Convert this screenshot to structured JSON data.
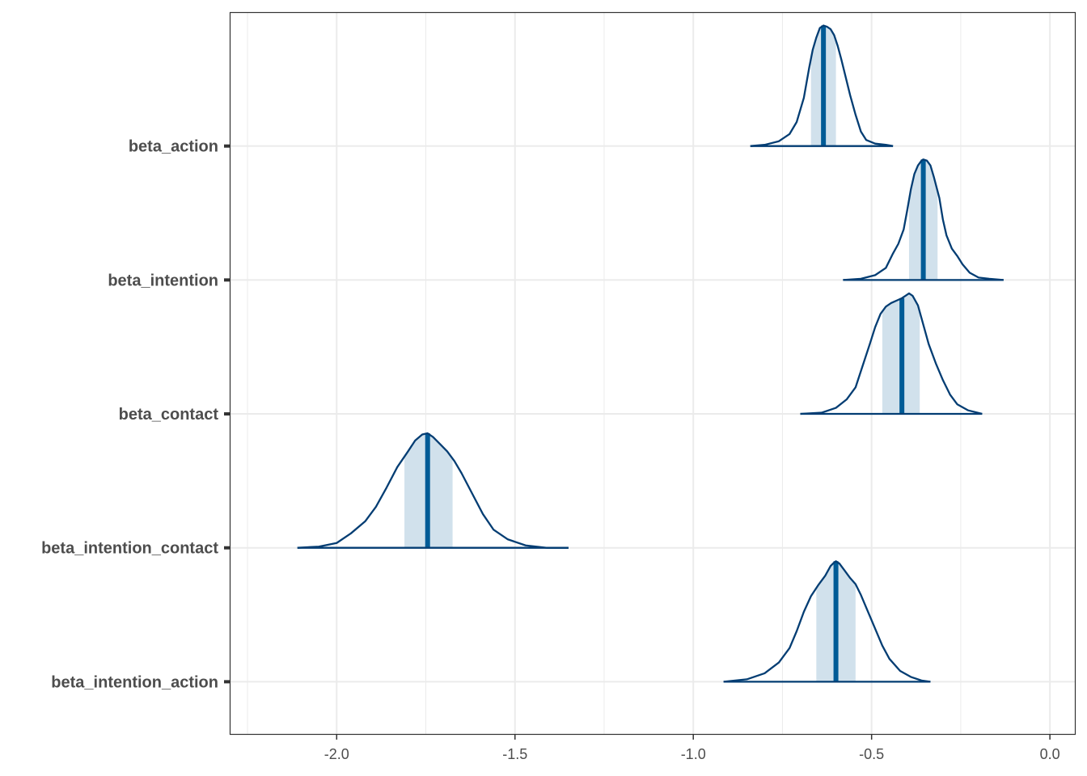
{
  "chart_data": {
    "type": "density",
    "xlim": [
      -2.3,
      0.07
    ],
    "x_ticks": [
      -2.0,
      -1.5,
      -1.0,
      -0.5,
      0.0
    ],
    "x_tick_labels": [
      "-2.0",
      "-1.5",
      "-1.0",
      "-0.5",
      "0.0"
    ],
    "grid": true,
    "colors": {
      "outline": "#033d73",
      "median_line": "#005b96",
      "interval_fill": "#d1e1ec",
      "grid": "#ebebeb",
      "panel_border": "#333333"
    },
    "series": [
      {
        "name": "beta_action",
        "median": -0.635,
        "interval": [
          -0.67,
          -0.6
        ],
        "range": [
          -0.84,
          -0.44
        ],
        "density": [
          [
            -0.84,
            0.0
          ],
          [
            -0.8,
            0.01
          ],
          [
            -0.76,
            0.04
          ],
          [
            -0.73,
            0.1
          ],
          [
            -0.71,
            0.2
          ],
          [
            -0.69,
            0.4
          ],
          [
            -0.675,
            0.65
          ],
          [
            -0.665,
            0.8
          ],
          [
            -0.655,
            0.9
          ],
          [
            -0.645,
            0.98
          ],
          [
            -0.635,
            1.0
          ],
          [
            -0.625,
            0.99
          ],
          [
            -0.615,
            0.97
          ],
          [
            -0.605,
            0.92
          ],
          [
            -0.595,
            0.83
          ],
          [
            -0.585,
            0.72
          ],
          [
            -0.575,
            0.6
          ],
          [
            -0.56,
            0.42
          ],
          [
            -0.545,
            0.26
          ],
          [
            -0.53,
            0.12
          ],
          [
            -0.515,
            0.05
          ],
          [
            -0.49,
            0.02
          ],
          [
            -0.46,
            0.01
          ],
          [
            -0.44,
            0.0
          ]
        ]
      },
      {
        "name": "beta_intention",
        "median": -0.355,
        "interval": [
          -0.395,
          -0.315
        ],
        "range": [
          -0.58,
          -0.13
        ],
        "density": [
          [
            -0.58,
            0.0
          ],
          [
            -0.53,
            0.01
          ],
          [
            -0.49,
            0.04
          ],
          [
            -0.46,
            0.1
          ],
          [
            -0.44,
            0.22
          ],
          [
            -0.425,
            0.3
          ],
          [
            -0.41,
            0.42
          ],
          [
            -0.4,
            0.58
          ],
          [
            -0.39,
            0.75
          ],
          [
            -0.38,
            0.88
          ],
          [
            -0.37,
            0.95
          ],
          [
            -0.36,
            0.99
          ],
          [
            -0.355,
            1.0
          ],
          [
            -0.345,
            0.99
          ],
          [
            -0.335,
            0.95
          ],
          [
            -0.325,
            0.85
          ],
          [
            -0.31,
            0.68
          ],
          [
            -0.3,
            0.5
          ],
          [
            -0.29,
            0.37
          ],
          [
            -0.275,
            0.26
          ],
          [
            -0.26,
            0.2
          ],
          [
            -0.245,
            0.13
          ],
          [
            -0.225,
            0.06
          ],
          [
            -0.2,
            0.02
          ],
          [
            -0.17,
            0.01
          ],
          [
            -0.13,
            0.0
          ]
        ]
      },
      {
        "name": "beta_contact",
        "median": -0.415,
        "interval": [
          -0.47,
          -0.365
        ],
        "range": [
          -0.7,
          -0.19
        ],
        "density": [
          [
            -0.7,
            0.0
          ],
          [
            -0.64,
            0.01
          ],
          [
            -0.6,
            0.05
          ],
          [
            -0.57,
            0.12
          ],
          [
            -0.545,
            0.22
          ],
          [
            -0.525,
            0.4
          ],
          [
            -0.505,
            0.58
          ],
          [
            -0.49,
            0.72
          ],
          [
            -0.475,
            0.83
          ],
          [
            -0.46,
            0.89
          ],
          [
            -0.445,
            0.92
          ],
          [
            -0.43,
            0.94
          ],
          [
            -0.415,
            0.96
          ],
          [
            -0.405,
            0.98
          ],
          [
            -0.395,
            1.0
          ],
          [
            -0.385,
            0.98
          ],
          [
            -0.37,
            0.9
          ],
          [
            -0.355,
            0.74
          ],
          [
            -0.34,
            0.58
          ],
          [
            -0.32,
            0.42
          ],
          [
            -0.3,
            0.28
          ],
          [
            -0.28,
            0.16
          ],
          [
            -0.26,
            0.08
          ],
          [
            -0.23,
            0.03
          ],
          [
            -0.19,
            0.0
          ]
        ]
      },
      {
        "name": "beta_intention_contact",
        "median": -1.745,
        "interval": [
          -1.81,
          -1.675
        ],
        "range": [
          -2.11,
          -1.35
        ],
        "density": [
          [
            -2.11,
            0.0
          ],
          [
            -2.05,
            0.01
          ],
          [
            -2.0,
            0.04
          ],
          [
            -1.96,
            0.12
          ],
          [
            -1.92,
            0.22
          ],
          [
            -1.89,
            0.34
          ],
          [
            -1.86,
            0.5
          ],
          [
            -1.83,
            0.67
          ],
          [
            -1.8,
            0.8
          ],
          [
            -1.78,
            0.89
          ],
          [
            -1.76,
            0.94
          ],
          [
            -1.745,
            0.95
          ],
          [
            -1.73,
            0.92
          ],
          [
            -1.71,
            0.86
          ],
          [
            -1.69,
            0.8
          ],
          [
            -1.67,
            0.72
          ],
          [
            -1.65,
            0.62
          ],
          [
            -1.62,
            0.45
          ],
          [
            -1.59,
            0.28
          ],
          [
            -1.56,
            0.15
          ],
          [
            -1.52,
            0.07
          ],
          [
            -1.47,
            0.02
          ],
          [
            -1.41,
            0.0
          ],
          [
            -1.35,
            0.0
          ]
        ]
      },
      {
        "name": "beta_intention_action",
        "median": -0.6,
        "interval": [
          -0.655,
          -0.545
        ],
        "range": [
          -0.915,
          -0.335
        ],
        "density": [
          [
            -0.915,
            0.0
          ],
          [
            -0.85,
            0.02
          ],
          [
            -0.8,
            0.07
          ],
          [
            -0.76,
            0.16
          ],
          [
            -0.73,
            0.28
          ],
          [
            -0.71,
            0.42
          ],
          [
            -0.69,
            0.58
          ],
          [
            -0.67,
            0.71
          ],
          [
            -0.65,
            0.8
          ],
          [
            -0.63,
            0.88
          ],
          [
            -0.615,
            0.96
          ],
          [
            -0.605,
            0.99
          ],
          [
            -0.6,
            1.0
          ],
          [
            -0.59,
            0.98
          ],
          [
            -0.575,
            0.92
          ],
          [
            -0.56,
            0.86
          ],
          [
            -0.545,
            0.81
          ],
          [
            -0.53,
            0.72
          ],
          [
            -0.51,
            0.58
          ],
          [
            -0.49,
            0.44
          ],
          [
            -0.47,
            0.3
          ],
          [
            -0.45,
            0.19
          ],
          [
            -0.42,
            0.09
          ],
          [
            -0.39,
            0.04
          ],
          [
            -0.36,
            0.01
          ],
          [
            -0.335,
            0.0
          ]
        ]
      }
    ]
  }
}
